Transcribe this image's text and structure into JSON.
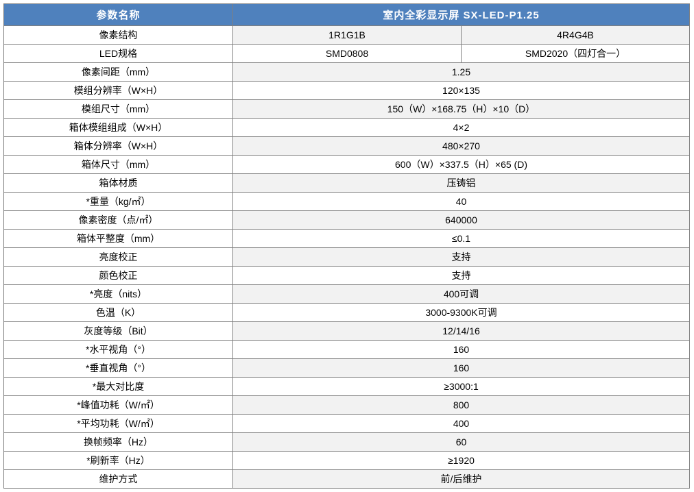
{
  "header": {
    "param_label": "参数名称",
    "product_label": "室内全彩显示屏  SX-LED-P1.25"
  },
  "colors": {
    "header_bg": "#4f81bd",
    "header_fg": "#ffffff",
    "border": "#808080",
    "alt_row_bg": "#f2f2f2",
    "row_bg": "#ffffff",
    "text": "#000000"
  },
  "rows": [
    {
      "param": "像素结构",
      "vals": [
        "1R1G1B",
        "4R4G4B"
      ]
    },
    {
      "param": "LED规格",
      "vals": [
        "SMD0808",
        "SMD2020（四灯合一）"
      ]
    },
    {
      "param": "像素间距（mm）",
      "vals": [
        "1.25"
      ]
    },
    {
      "param": "模组分辨率（W×H）",
      "vals": [
        "120×135"
      ]
    },
    {
      "param": "模组尺寸（mm）",
      "vals": [
        "150（W）×168.75（H）×10（D）"
      ]
    },
    {
      "param": "箱体模组组成（W×H）",
      "vals": [
        "4×2"
      ]
    },
    {
      "param": "箱体分辨率（W×H）",
      "vals": [
        "480×270"
      ]
    },
    {
      "param": "箱体尺寸（mm）",
      "vals": [
        "600（W）×337.5（H）×65 (D)"
      ]
    },
    {
      "param": "箱体材质",
      "vals": [
        "压铸铝"
      ]
    },
    {
      "param": "*重量（kg/㎡）",
      "vals": [
        "40"
      ]
    },
    {
      "param": "像素密度（点/㎡）",
      "vals": [
        "640000"
      ]
    },
    {
      "param": "箱体平整度（mm）",
      "vals": [
        "≤0.1"
      ]
    },
    {
      "param": "亮度校正",
      "vals": [
        "支持"
      ]
    },
    {
      "param": "颜色校正",
      "vals": [
        "支持"
      ]
    },
    {
      "param": "*亮度（nits）",
      "vals": [
        "400可调"
      ]
    },
    {
      "param": "色温（K）",
      "vals": [
        "3000-9300K可调"
      ]
    },
    {
      "param": "灰度等级（Bit）",
      "vals": [
        "12/14/16"
      ]
    },
    {
      "param": "*水平视角（°）",
      "vals": [
        "160"
      ]
    },
    {
      "param": "*垂直视角（°）",
      "vals": [
        "160"
      ]
    },
    {
      "param": "*最大对比度",
      "vals": [
        "≥3000:1"
      ]
    },
    {
      "param": "*峰值功耗（W/㎡）",
      "vals": [
        "800"
      ]
    },
    {
      "param": "*平均功耗（W/㎡）",
      "vals": [
        "400"
      ]
    },
    {
      "param": "换帧频率（Hz）",
      "vals": [
        "60"
      ]
    },
    {
      "param": "*刷新率（Hz）",
      "vals": [
        "≥1920"
      ]
    },
    {
      "param": "维护方式",
      "vals": [
        "前/后维护"
      ]
    }
  ]
}
